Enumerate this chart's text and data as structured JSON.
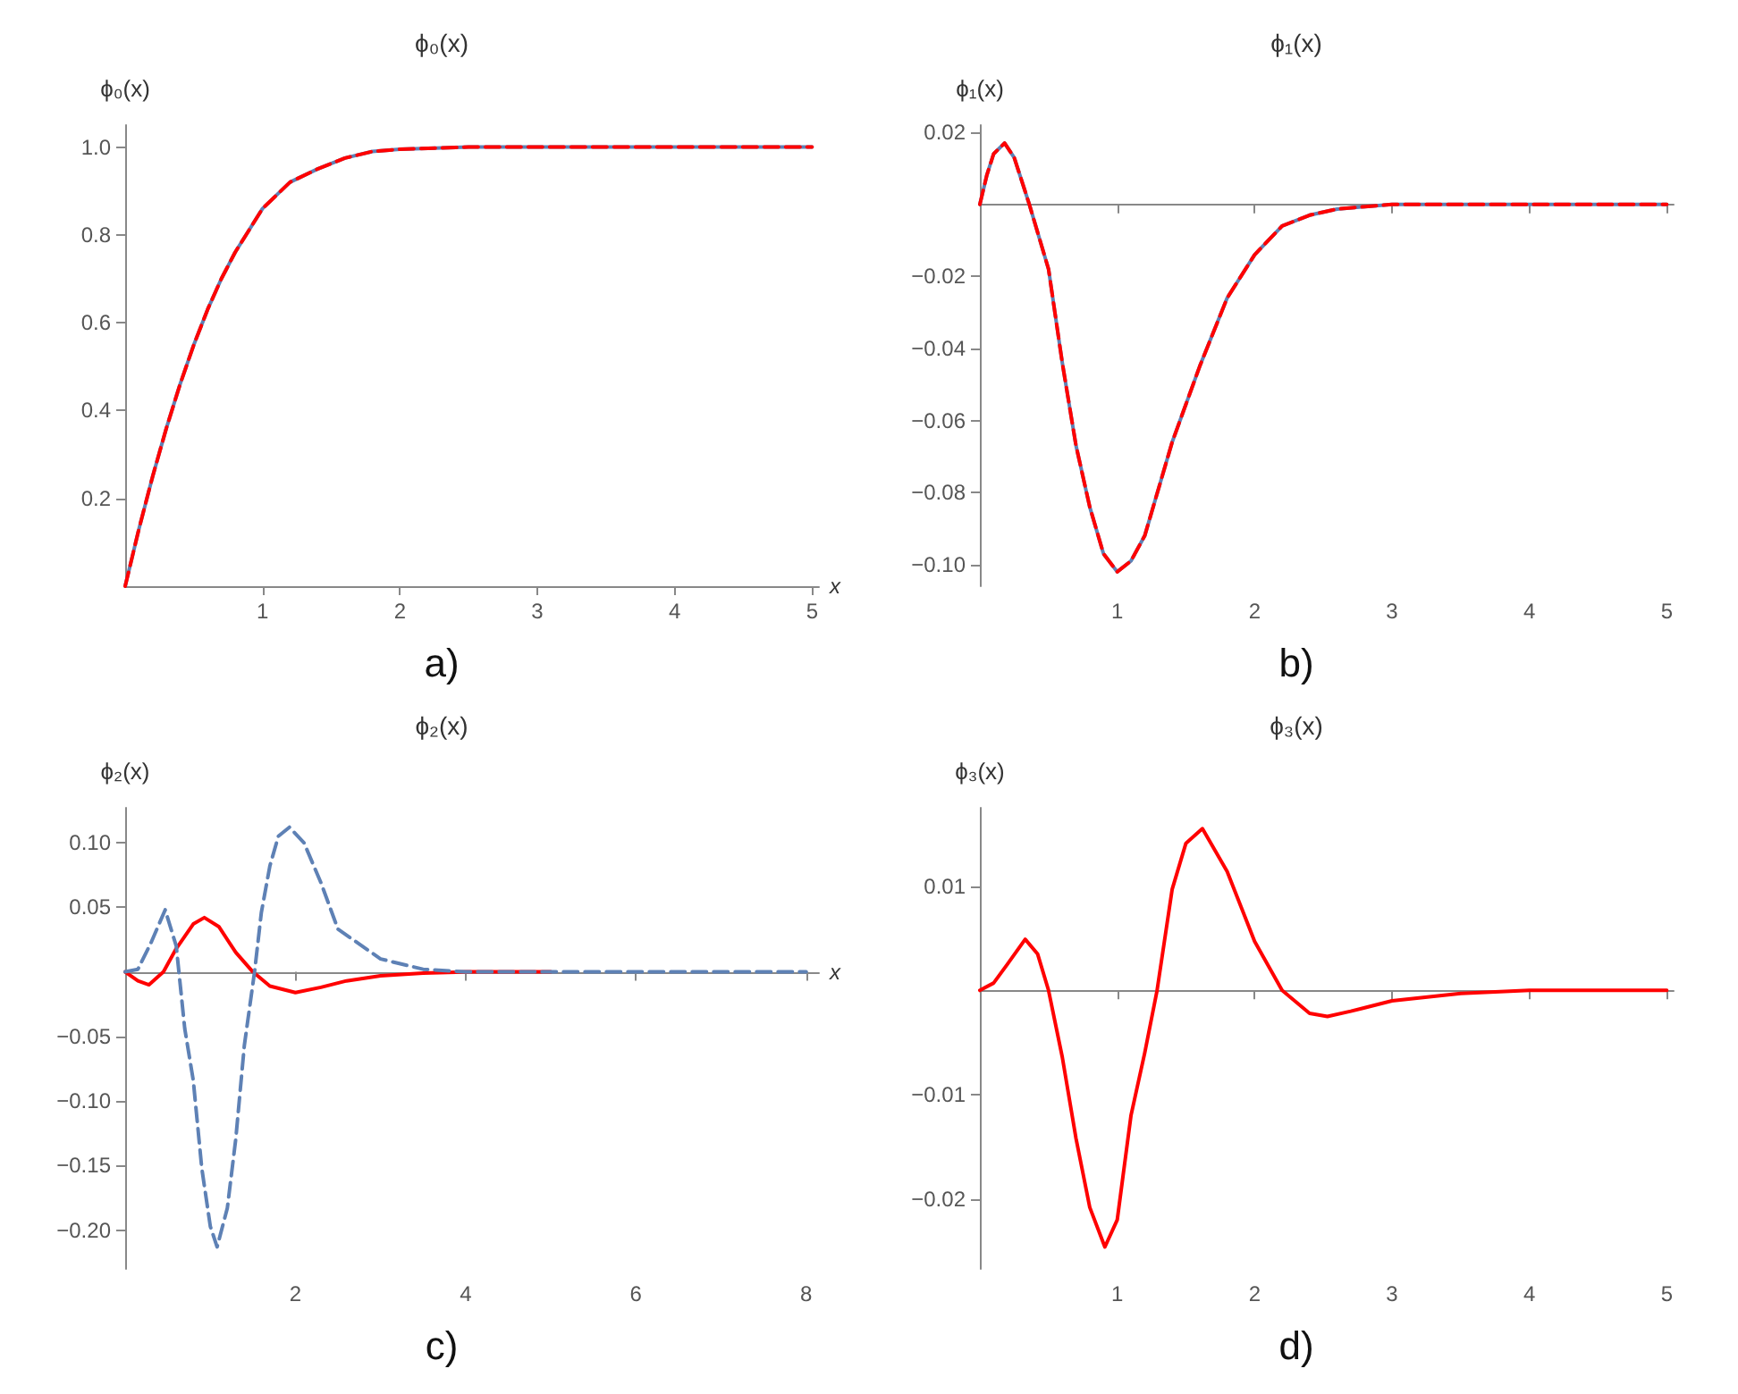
{
  "chart_data": [
    {
      "type": "line",
      "title": "ϕ₀(x)",
      "ylabel": "ϕ₀(x)",
      "xlabel": "x",
      "annotations": [
        "a)"
      ],
      "marker": "none",
      "xlim": [
        0,
        5.05
      ],
      "xticks": [
        1,
        2,
        3,
        4,
        5
      ],
      "ylim": [
        0,
        1.05
      ],
      "yticks": [
        0.2,
        0.4,
        0.6,
        0.8,
        {
          "value": 1,
          "label": "1.0"
        }
      ],
      "x": [
        0,
        0.1,
        0.2,
        0.3,
        0.4,
        0.5,
        0.6,
        0.7,
        0.8,
        0.9,
        1.0,
        1.2,
        1.4,
        1.6,
        1.8,
        2.0,
        2.5,
        3,
        4,
        5
      ],
      "series": [
        {
          "color": "#5e81b5",
          "line_style": "solid",
          "values": [
            0,
            0.13,
            0.25,
            0.36,
            0.46,
            0.55,
            0.63,
            0.7,
            0.76,
            0.81,
            0.86,
            0.92,
            0.95,
            0.975,
            0.99,
            0.995,
            1,
            1,
            1,
            1
          ]
        },
        {
          "color": "#ff0000",
          "line_style": "dashed",
          "values": [
            0,
            0.13,
            0.25,
            0.36,
            0.46,
            0.55,
            0.63,
            0.7,
            0.76,
            0.81,
            0.86,
            0.92,
            0.95,
            0.975,
            0.99,
            0.995,
            1,
            1,
            1,
            1
          ]
        }
      ]
    },
    {
      "type": "line",
      "title": "ϕ₁(x)",
      "ylabel": "ϕ₁(x)",
      "annotations": [
        "b)"
      ],
      "marker": "none",
      "xlim": [
        0,
        5.05
      ],
      "xticks": [
        1,
        2,
        3,
        4,
        5
      ],
      "ylim": [
        -0.106,
        0.022
      ],
      "yticks": [
        {
          "value": -0.1,
          "label": "−0.10"
        },
        {
          "value": -0.08,
          "label": "−0.08"
        },
        {
          "value": -0.06,
          "label": "−0.06"
        },
        {
          "value": -0.04,
          "label": "−0.04"
        },
        {
          "value": -0.02,
          "label": "−0.02"
        },
        0.02
      ],
      "x": [
        0,
        0.05,
        0.1,
        0.18,
        0.25,
        0.36,
        0.5,
        0.6,
        0.7,
        0.8,
        0.9,
        1.0,
        1.1,
        1.2,
        1.4,
        1.6,
        1.8,
        2.0,
        2.2,
        2.4,
        2.6,
        3,
        4,
        5
      ],
      "series": [
        {
          "color": "#5e81b5",
          "line_style": "solid",
          "values": [
            0,
            0.008,
            0.014,
            0.017,
            0.013,
            0,
            -0.018,
            -0.044,
            -0.067,
            -0.084,
            -0.097,
            -0.102,
            -0.099,
            -0.092,
            -0.066,
            -0.045,
            -0.026,
            -0.014,
            -0.006,
            -0.003,
            -0.0013,
            0,
            0,
            0
          ]
        },
        {
          "color": "#ff0000",
          "line_style": "dashed",
          "values": [
            0,
            0.008,
            0.014,
            0.017,
            0.013,
            0,
            -0.018,
            -0.044,
            -0.067,
            -0.084,
            -0.097,
            -0.102,
            -0.099,
            -0.092,
            -0.066,
            -0.045,
            -0.026,
            -0.014,
            -0.006,
            -0.003,
            -0.0013,
            0,
            0,
            0
          ]
        }
      ]
    },
    {
      "type": "line",
      "title": "ϕ₂(x)",
      "ylabel": "ϕ₂(x)",
      "xlabel": "x",
      "annotations": [
        "c)"
      ],
      "marker": "none",
      "xlim": [
        0,
        8.15
      ],
      "xticks": [
        2,
        4,
        6,
        8
      ],
      "ylim": [
        -0.23,
        0.127
      ],
      "yticks": [
        {
          "value": -0.2,
          "label": "−0.20"
        },
        {
          "value": -0.15,
          "label": "−0.15"
        },
        {
          "value": -0.1,
          "label": "−0.10"
        },
        {
          "value": -0.05,
          "label": "−0.05"
        },
        0.05,
        {
          "value": 0.1,
          "label": "0.10"
        }
      ],
      "series": [
        {
          "color": "#ff0000",
          "line_style": "solid",
          "x": [
            0,
            0.15,
            0.28,
            0.45,
            0.6,
            0.8,
            0.93,
            1.1,
            1.3,
            1.5,
            1.7,
            2.0,
            2.3,
            2.6,
            3,
            3.5,
            4,
            5
          ],
          "values": [
            0,
            -0.007,
            -0.01,
            0,
            0.018,
            0.037,
            0.042,
            0.035,
            0.015,
            0,
            -0.011,
            -0.016,
            -0.012,
            -0.007,
            -0.003,
            -0.001,
            0,
            0
          ]
        },
        {
          "color": "#5e81b5",
          "line_style": "dashed",
          "x": [
            0,
            0.15,
            0.3,
            0.47,
            0.6,
            0.7,
            0.8,
            0.9,
            1.0,
            1.08,
            1.2,
            1.3,
            1.4,
            1.52,
            1.6,
            1.7,
            1.8,
            1.93,
            2.1,
            2.3,
            2.5,
            3,
            3.5,
            4,
            5,
            6,
            7,
            8
          ],
          "values": [
            0,
            0.002,
            0.022,
            0.048,
            0.02,
            -0.044,
            -0.084,
            -0.152,
            -0.197,
            -0.213,
            -0.183,
            -0.129,
            -0.057,
            0,
            0.046,
            0.082,
            0.105,
            0.112,
            0.1,
            0.069,
            0.033,
            0.01,
            0.002,
            0,
            0,
            0,
            0,
            0
          ]
        }
      ]
    },
    {
      "type": "line",
      "title": "ϕ₃(x)",
      "ylabel": "ϕ₃(x)",
      "annotations": [
        "d)"
      ],
      "marker": "none",
      "xlim": [
        0,
        5.05
      ],
      "xticks": [
        1,
        2,
        3,
        4,
        5
      ],
      "ylim": [
        -0.0267,
        0.0175
      ],
      "yticks": [
        {
          "value": -0.02,
          "label": "−0.02"
        },
        {
          "value": -0.01,
          "label": "−0.01"
        },
        0.01
      ],
      "x": [
        0,
        0.1,
        0.2,
        0.33,
        0.42,
        0.5,
        0.6,
        0.7,
        0.8,
        0.91,
        1.0,
        1.1,
        1.2,
        1.29,
        1.4,
        1.5,
        1.62,
        1.8,
        2.0,
        2.2,
        2.4,
        2.53,
        2.7,
        3,
        3.5,
        4,
        5
      ],
      "series": [
        {
          "color": "#ff0000",
          "line_style": "solid",
          "values": [
            0,
            0.0007,
            0.0025,
            0.0049,
            0.0035,
            0,
            -0.0064,
            -0.0142,
            -0.0208,
            -0.0246,
            -0.022,
            -0.012,
            -0.006,
            0,
            0.0097,
            0.0141,
            0.0155,
            0.0114,
            0.0047,
            0,
            -0.0022,
            -0.0025,
            -0.002,
            -0.001,
            -0.0003,
            0,
            0
          ]
        }
      ]
    }
  ]
}
